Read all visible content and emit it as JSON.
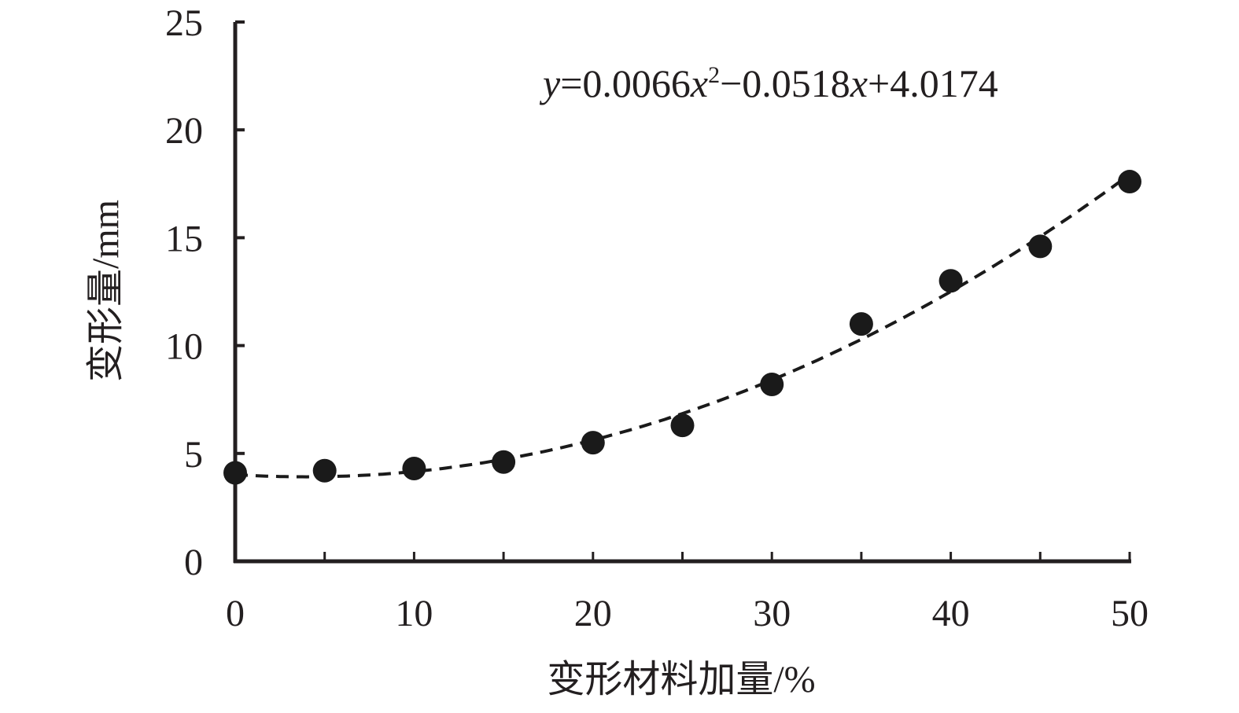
{
  "chart_data": {
    "type": "scatter",
    "title": "",
    "xlabel": "变形材料加量/%",
    "ylabel": "变形量/mm",
    "xlim": [
      0,
      50
    ],
    "ylim": [
      0,
      25
    ],
    "xticks": [
      0,
      10,
      20,
      30,
      40,
      50
    ],
    "yticks": [
      0,
      5,
      10,
      15,
      20,
      25
    ],
    "grid": false,
    "legend": "none",
    "series": [
      {
        "x": [
          0,
          5,
          10,
          15,
          20,
          25,
          30,
          35,
          40,
          45,
          50
        ],
        "y": [
          4.1,
          4.2,
          4.3,
          4.6,
          5.5,
          6.3,
          8.2,
          11.0,
          13.0,
          14.6,
          17.6
        ],
        "marker": "filled-circle",
        "color": "#1a1a1a"
      }
    ],
    "trendline": {
      "type": "polynomial",
      "order": 2,
      "coefficients": {
        "a": 0.0066,
        "b": -0.0518,
        "c": 4.0174
      },
      "style": "dashed",
      "color": "#1a1a1a"
    },
    "annotation": {
      "parts": [
        "y",
        "=0.0066",
        "x",
        "2",
        "−0.0518",
        "x",
        "+4.0174"
      ]
    }
  }
}
